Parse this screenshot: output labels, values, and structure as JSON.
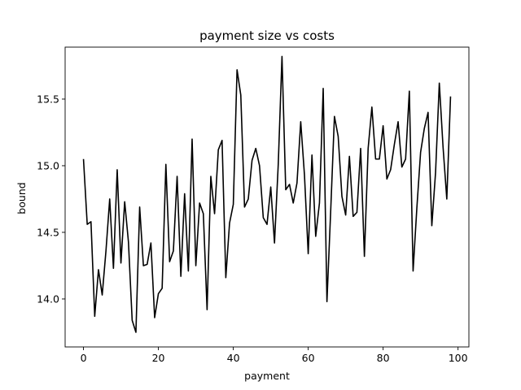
{
  "chart_data": {
    "type": "line",
    "title": "payment size vs costs",
    "xlabel": "payment",
    "ylabel": "bound",
    "xlim": [
      -4.9,
      102.9
    ],
    "ylim": [
      13.64,
      15.89
    ],
    "xticks": [
      0,
      20,
      40,
      60,
      80,
      100
    ],
    "yticks": [
      14.0,
      14.5,
      15.0,
      15.5
    ],
    "ytick_labels": [
      "14.0",
      "14.5",
      "15.0",
      "15.5"
    ],
    "grid": false,
    "line_color": "#000000",
    "series": [
      {
        "x": [
          0,
          1,
          2,
          3,
          4,
          5,
          6,
          7,
          8,
          9,
          10,
          11,
          12,
          13,
          14,
          15,
          16,
          17,
          18,
          19,
          20,
          21,
          22,
          23,
          24,
          25,
          26,
          27,
          28,
          29,
          30,
          31,
          32,
          33,
          34,
          35,
          36,
          37,
          38,
          39,
          40,
          41,
          42,
          43,
          44,
          45,
          46,
          47,
          48,
          49,
          50,
          51,
          52,
          53,
          54,
          55,
          56,
          57,
          58,
          59,
          60,
          61,
          62,
          63,
          64,
          65,
          66,
          67,
          68,
          69,
          70,
          71,
          72,
          73,
          74,
          75,
          76,
          77,
          78,
          79,
          80,
          81,
          82,
          83,
          84,
          85,
          86,
          87,
          88,
          89,
          90,
          91,
          92,
          93,
          94,
          95,
          96,
          97,
          98
        ],
        "values": [
          15.05,
          14.56,
          14.58,
          13.87,
          14.22,
          14.03,
          14.36,
          14.75,
          14.23,
          14.97,
          14.27,
          14.73,
          14.43,
          13.84,
          13.75,
          14.69,
          14.25,
          14.26,
          14.42,
          13.86,
          14.04,
          14.08,
          15.01,
          14.28,
          14.36,
          14.92,
          14.17,
          14.79,
          14.21,
          15.2,
          14.25,
          14.72,
          14.64,
          13.92,
          14.92,
          14.64,
          15.12,
          15.19,
          14.16,
          14.57,
          14.71,
          15.72,
          15.53,
          14.69,
          14.75,
          15.04,
          15.13,
          15.0,
          14.61,
          14.56,
          14.84,
          14.42,
          15.01,
          15.82,
          14.82,
          14.86,
          14.72,
          14.87,
          15.33,
          14.93,
          14.34,
          15.08,
          14.47,
          14.72,
          15.58,
          13.98,
          14.66,
          15.37,
          15.22,
          14.77,
          14.63,
          15.07,
          14.62,
          14.65,
          15.13,
          14.32,
          15.13,
          15.44,
          15.05,
          15.05,
          15.3,
          14.9,
          14.97,
          15.16,
          15.33,
          14.99,
          15.05,
          15.56,
          14.21,
          14.68,
          15.1,
          15.28,
          15.4,
          14.55,
          14.95,
          15.62,
          15.14,
          14.75,
          15.52
        ]
      }
    ]
  }
}
